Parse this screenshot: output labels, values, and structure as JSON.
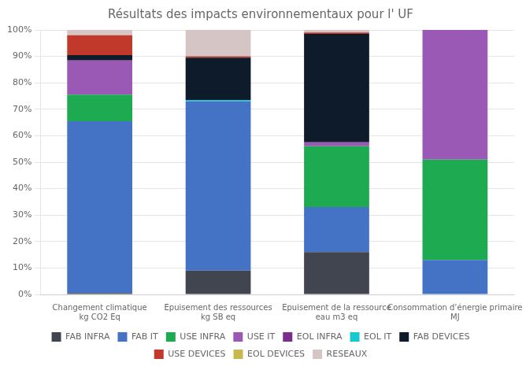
{
  "chart_data": {
    "type": "bar",
    "stacked": true,
    "title": "Résultats des impacts environnementaux pour l' UF",
    "categories": [
      "Changement climatique\nkg CO2 Eq",
      "Epuisement des ressources\nkg SB eq",
      "Epuisement de la ressource\neau m3 eq",
      "Consommation d’énergie primaire\nMJ"
    ],
    "series": [
      {
        "name": "FAB INFRA",
        "color": "#404550",
        "values": [
          0.5,
          9.0,
          16.0,
          0.0
        ]
      },
      {
        "name": "FAB IT",
        "color": "#4472C4",
        "values": [
          65.0,
          64.0,
          17.0,
          13.0
        ]
      },
      {
        "name": "USE INFRA",
        "color": "#1DAA50",
        "values": [
          10.0,
          0.0,
          23.0,
          38.0
        ]
      },
      {
        "name": "USE IT",
        "color": "#9B59B6",
        "values": [
          13.0,
          0.0,
          1.5,
          49.0
        ]
      },
      {
        "name": "EOL INFRA",
        "color": "#7B2D8B",
        "values": [
          0.0,
          0.0,
          0.0,
          0.0
        ]
      },
      {
        "name": "EOL IT",
        "color": "#17C8D0",
        "values": [
          0.0,
          0.5,
          0.0,
          0.0
        ]
      },
      {
        "name": "FAB DEVICES",
        "color": "#0D1B2A",
        "values": [
          2.0,
          16.0,
          41.0,
          0.0
        ]
      },
      {
        "name": "USE DEVICES",
        "color": "#C0392B",
        "values": [
          7.5,
          0.5,
          0.5,
          0.0
        ]
      },
      {
        "name": "EOL DEVICES",
        "color": "#C8B850",
        "values": [
          0.0,
          0.0,
          0.0,
          0.0
        ]
      },
      {
        "name": "RESEAUX",
        "color": "#D6C5C5",
        "values": [
          2.0,
          10.0,
          1.0,
          0.0
        ]
      }
    ],
    "ylim": [
      0,
      100
    ],
    "yticks": [
      {
        "value": 0,
        "label": "0%"
      },
      {
        "value": 10,
        "label": "10%"
      },
      {
        "value": 20,
        "label": "20%"
      },
      {
        "value": 30,
        "label": "30%"
      },
      {
        "value": 40,
        "label": "40%"
      },
      {
        "value": 50,
        "label": "50%"
      },
      {
        "value": 60,
        "label": "60%"
      },
      {
        "value": 70,
        "label": "70%"
      },
      {
        "value": 80,
        "label": "80%"
      },
      {
        "value": 90,
        "label": "90%"
      },
      {
        "value": 100,
        "label": "100%"
      }
    ],
    "grid": true,
    "legend": "bottom"
  }
}
